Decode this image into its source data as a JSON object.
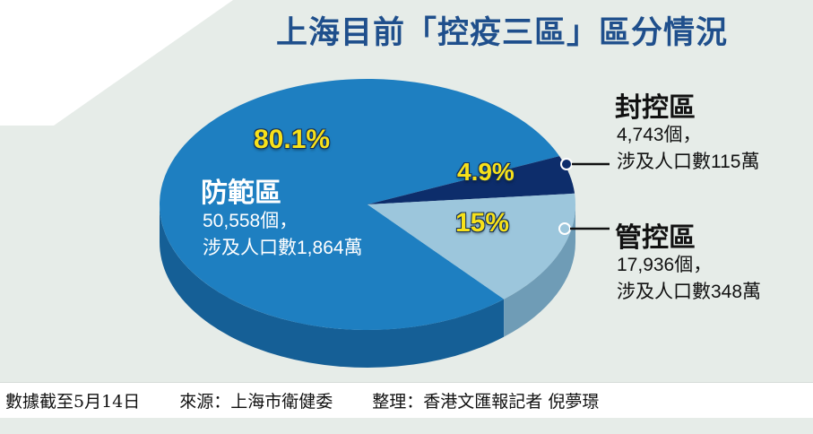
{
  "colors": {
    "fangfan": "#1e7fc1",
    "fangfan_side": "#155f96",
    "fengkong": "#0d2d6b",
    "fengkong_side": "#0a2152",
    "guankong": "#9cc6dc",
    "guankong_side": "#6f9cb6",
    "background_panel": "#e6ece8",
    "title": "#1f4f8c",
    "percent_label": "#f7e11a"
  },
  "title": "上海目前「控疫三區」區分情況",
  "chart_data": {
    "type": "pie",
    "title": "上海目前「控疫三區」區分情況",
    "slices": [
      {
        "name": "防範區",
        "percent": 80.1,
        "percent_label": "80.1%",
        "count": "50,558個，",
        "population": "涉及人口數1,864萬"
      },
      {
        "name": "封控區",
        "percent": 4.9,
        "percent_label": "4.9%",
        "count": "4,743個，",
        "population": "涉及人口數115萬"
      },
      {
        "name": "管控區",
        "percent": 15,
        "percent_label": "15%",
        "count": "17,936個，",
        "population": "涉及人口數348萬"
      }
    ]
  },
  "footer": {
    "date_note": "數據截至5月14日",
    "source": "來源：上海市衛健委",
    "compiled_by": "整理：香港文匯報記者 倪夢璟"
  }
}
